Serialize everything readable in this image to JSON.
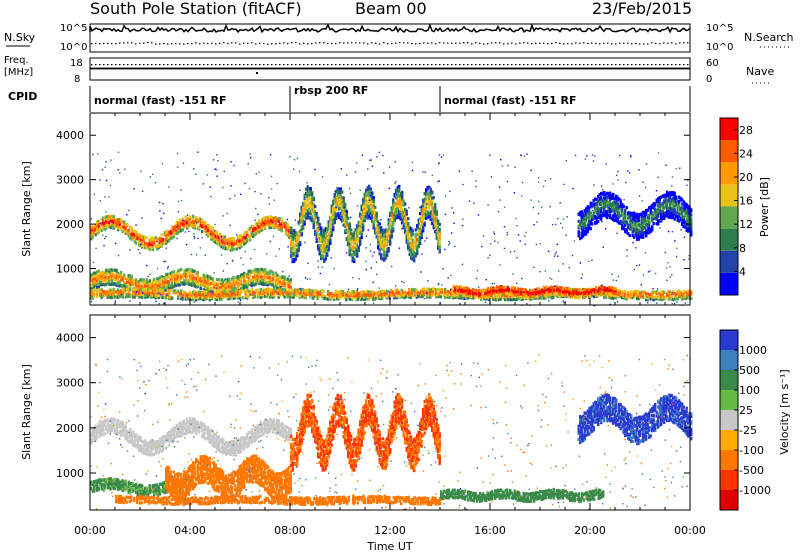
{
  "header": {
    "station": "South Pole Station (fitACF)",
    "beam": "Beam 00",
    "date": "23/Feb/2015"
  },
  "aux_panels": {
    "nsky_label": "N.Sky",
    "nsky_ticks": [
      "10^5",
      "10^0"
    ],
    "nsearch_label": "N.Search",
    "nsearch_ticks": [
      "10^5",
      "10^0"
    ],
    "freq_label": "Freq.",
    "freq_unit": "[MHz]",
    "freq_ticks": [
      "18",
      "8"
    ],
    "nave_label": "Nave",
    "nave_ticks": [
      "60",
      "0"
    ],
    "cpid_label": "CPID",
    "modes": [
      {
        "label": "normal (fast) -151 RF",
        "start_h": 0,
        "end_h": 8
      },
      {
        "label": "rbsp 200 RF",
        "start_h": 8,
        "end_h": 14
      },
      {
        "label": "normal (fast) -151 RF",
        "start_h": 14,
        "end_h": 24
      }
    ]
  },
  "colors": {
    "power_scale": [
      "#0000ff",
      "#2244aa",
      "#2e7d4f",
      "#5fa94f",
      "#e8c21a",
      "#ff9900",
      "#ff5a00",
      "#ff0000"
    ],
    "velocity_scale": [
      "#2a3bd1",
      "#3e7fbf",
      "#3a8a4a",
      "#66bb44",
      "#c8c8c8",
      "#ffaa00",
      "#ff7700",
      "#ff3300",
      "#dd0000"
    ]
  },
  "chart_data": [
    {
      "type": "heatmap",
      "name": "power-rti",
      "xlabel": "Time UT",
      "ylabel": "Slant Range [km]",
      "xlim": [
        0,
        24
      ],
      "ylim": [
        180,
        4500
      ],
      "x_ticks": [
        "00:00",
        "04:00",
        "08:00",
        "12:00",
        "16:00",
        "20:00",
        "00:00"
      ],
      "y_ticks": [
        1000,
        2000,
        3000,
        4000
      ],
      "colorbar_label": "Power [dB]",
      "colorbar_ticks": [
        4,
        8,
        12,
        16,
        20,
        24,
        28
      ],
      "colorbar_range": [
        0,
        30
      ],
      "features": [
        {
          "desc": "wavy band",
          "t_start": 0,
          "t_end": 8,
          "center_km": 1800,
          "amplitude_km": 250,
          "period_h": 3.2,
          "width_km": 260,
          "value": 22
        },
        {
          "desc": "near-range patch",
          "t_start": 0,
          "t_end": 8,
          "center_km": 700,
          "amplitude_km": 120,
          "period_h": 3.0,
          "width_km": 350,
          "value": 18
        },
        {
          "desc": "ground scatter",
          "t_start": 0,
          "t_end": 24,
          "center_km": 420,
          "amplitude_km": 30,
          "period_h": 6.0,
          "width_km": 180,
          "value": 20
        },
        {
          "desc": "streaks",
          "t_start": 8,
          "t_end": 14,
          "center_km": 2000,
          "amplitude_km": 500,
          "period_h": 1.2,
          "width_km": 700,
          "value": 14
        },
        {
          "desc": "strong echo",
          "t_start": 14.5,
          "t_end": 21,
          "center_km": 480,
          "amplitude_km": 40,
          "period_h": 2.0,
          "width_km": 200,
          "value": 27
        },
        {
          "desc": "late band",
          "t_start": 19.5,
          "t_end": 24,
          "center_km": 2200,
          "amplitude_km": 250,
          "period_h": 2.5,
          "width_km": 600,
          "value": 6
        }
      ]
    },
    {
      "type": "heatmap",
      "name": "velocity-rti",
      "xlabel": "Time UT",
      "ylabel": "Slant Range [km]",
      "xlim": [
        0,
        24
      ],
      "ylim": [
        180,
        4500
      ],
      "x_ticks": [
        "00:00",
        "04:00",
        "08:00",
        "12:00",
        "16:00",
        "20:00",
        "00:00"
      ],
      "y_ticks": [
        1000,
        2000,
        3000,
        4000
      ],
      "colorbar_label": "Velocity [m s⁻¹]",
      "colorbar_ticks": [
        "1000",
        "500",
        "100",
        "25",
        "-25",
        "-100",
        "-500",
        "-1000"
      ],
      "features": [
        {
          "desc": "ground scatter band",
          "t_start": 0,
          "t_end": 8,
          "center_km": 1800,
          "amplitude_km": 250,
          "period_h": 3.2,
          "width_km": 300,
          "value": 0
        },
        {
          "desc": "green patch",
          "t_start": 0,
          "t_end": 4,
          "center_km": 700,
          "amplitude_km": 80,
          "period_h": 3.0,
          "width_km": 250,
          "value": 120
        },
        {
          "desc": "orange patch",
          "t_start": 3,
          "t_end": 8,
          "center_km": 900,
          "amplitude_km": 200,
          "period_h": 2.0,
          "width_km": 600,
          "value": -150
        },
        {
          "desc": "ground scatter lower",
          "t_start": 1,
          "t_end": 14,
          "center_km": 400,
          "amplitude_km": 20,
          "period_h": 5.0,
          "width_km": 150,
          "value": -200
        },
        {
          "desc": "streaks",
          "t_start": 8,
          "t_end": 14,
          "center_km": 1900,
          "amplitude_km": 500,
          "period_h": 1.2,
          "width_km": 700,
          "value": -500
        },
        {
          "desc": "green low",
          "t_start": 14,
          "t_end": 20.5,
          "center_km": 500,
          "amplitude_km": 40,
          "period_h": 2.0,
          "width_km": 180,
          "value": 150
        },
        {
          "desc": "late band",
          "t_start": 19.5,
          "t_end": 24,
          "center_km": 2200,
          "amplitude_km": 250,
          "period_h": 2.5,
          "width_km": 600,
          "value": 900
        }
      ]
    }
  ]
}
